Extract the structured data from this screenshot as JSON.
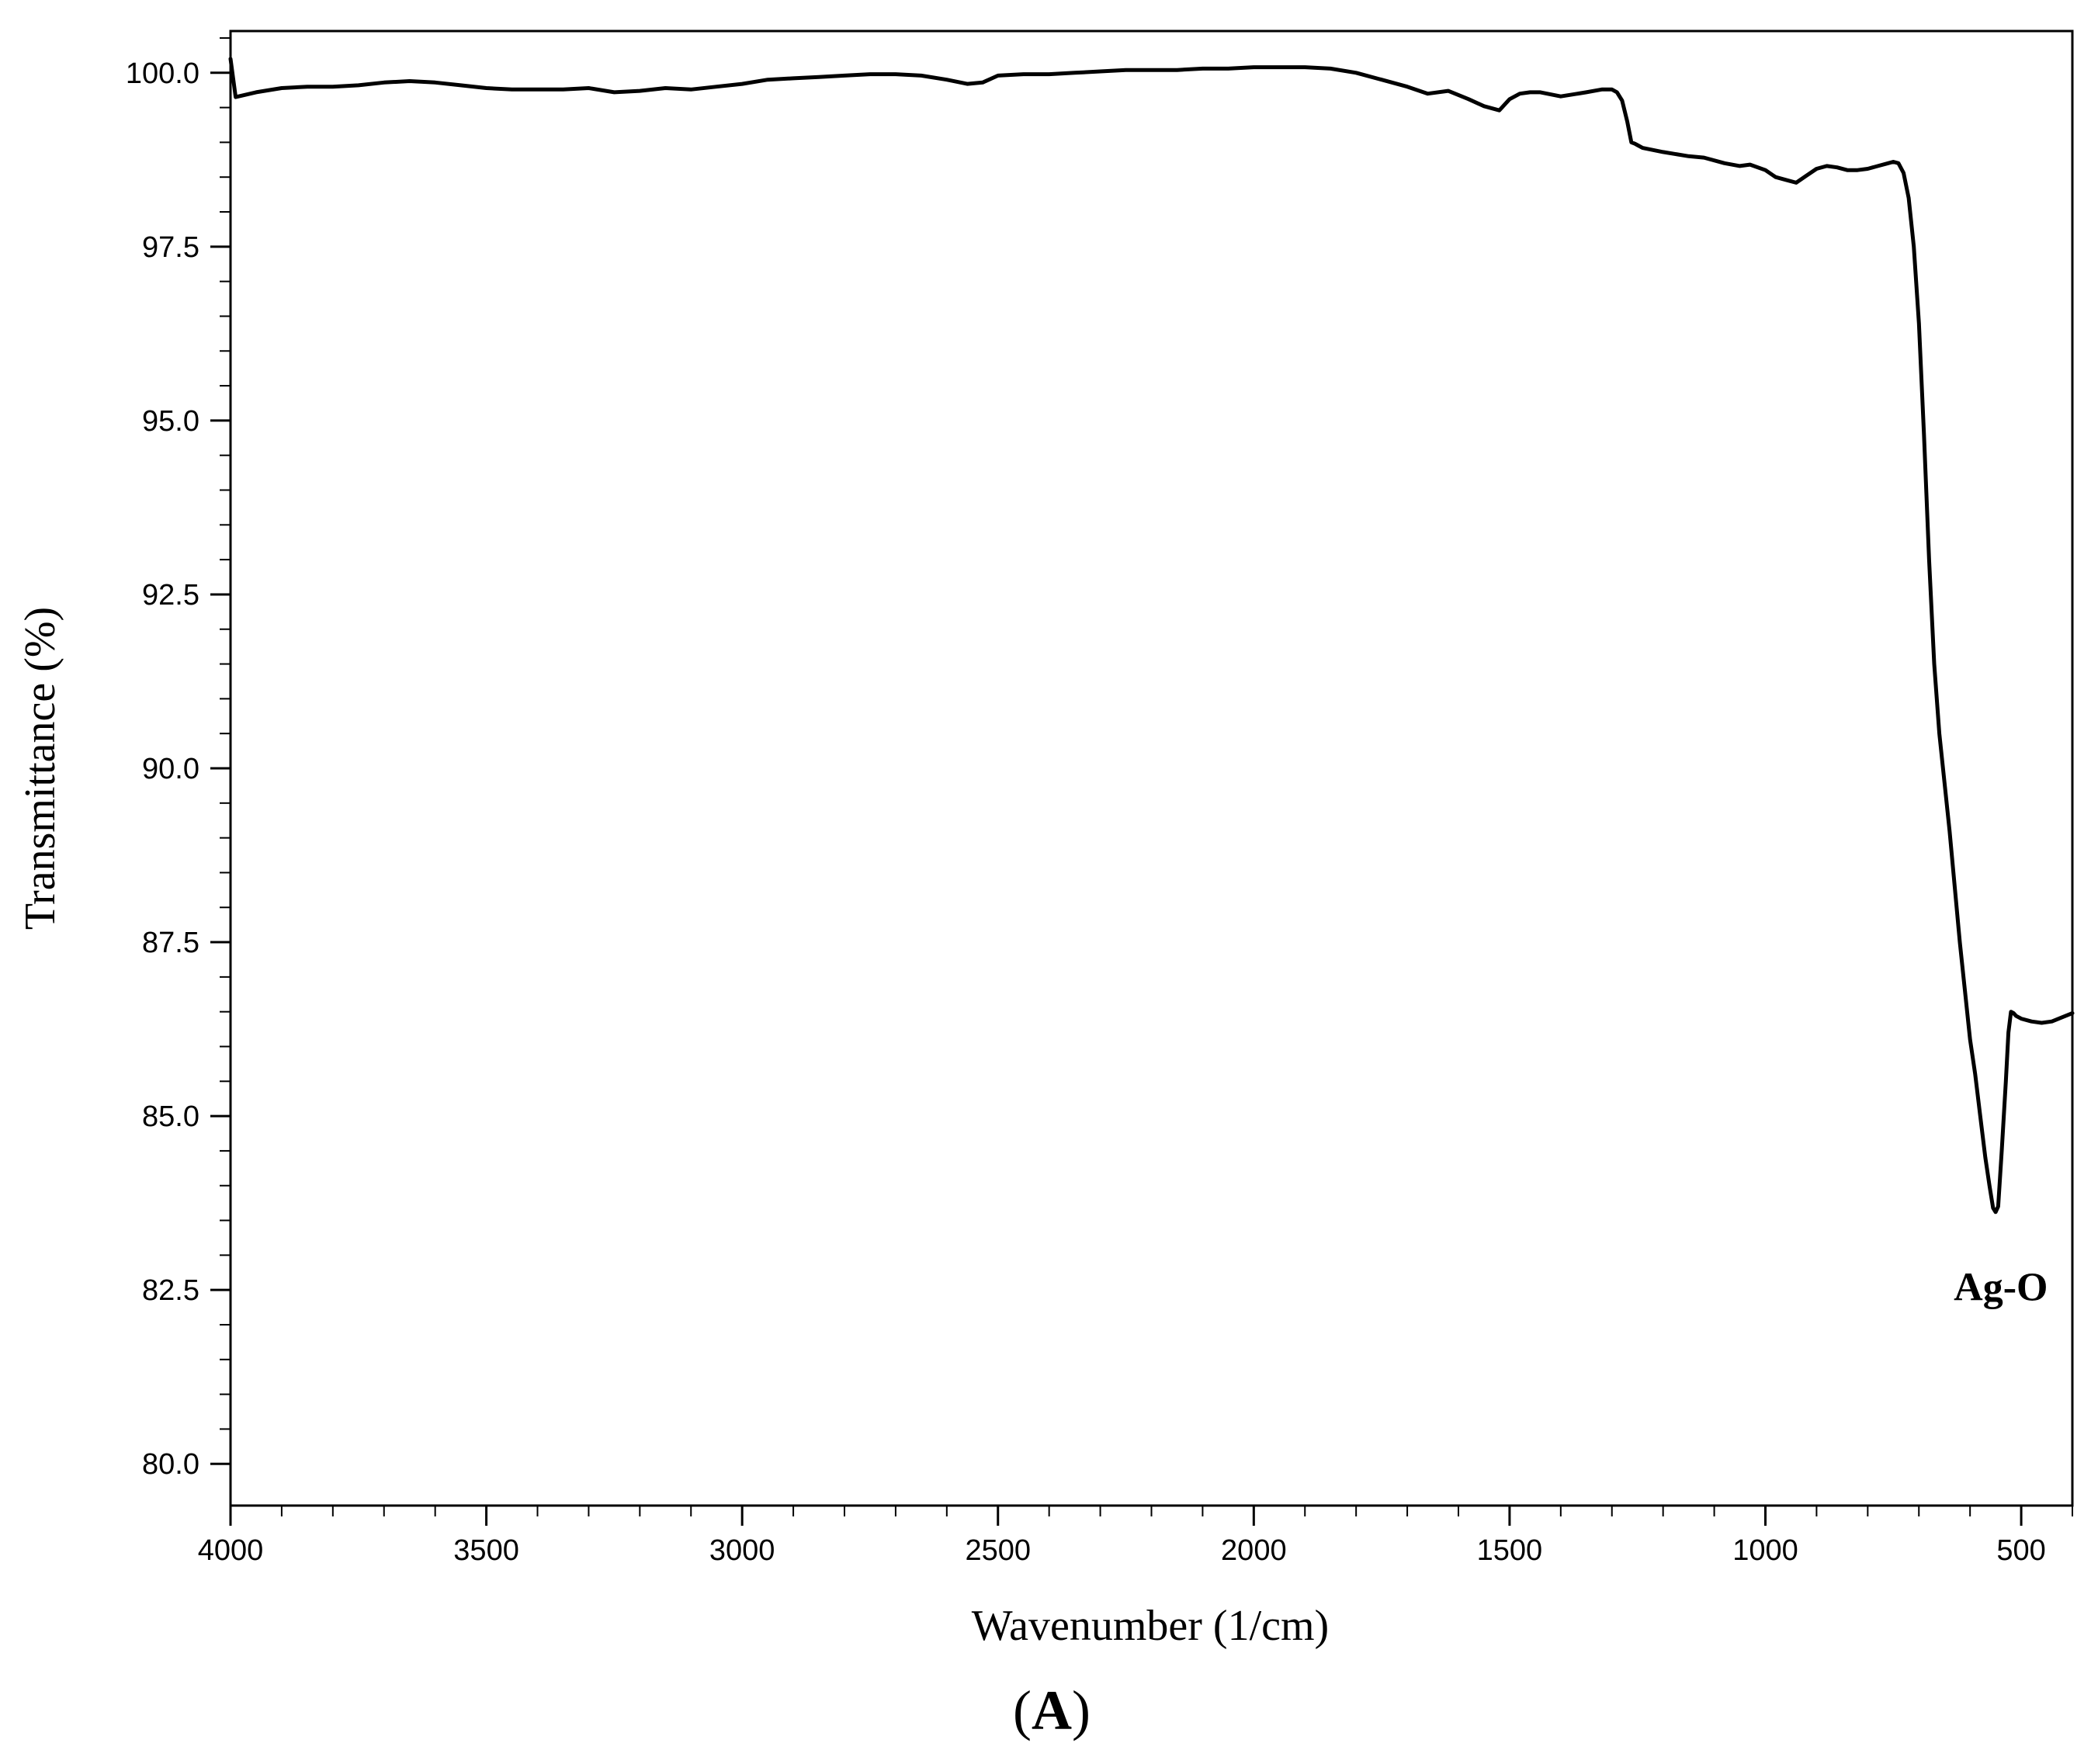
{
  "chart_data": {
    "type": "line",
    "title": "",
    "xlabel": "Wavenumber (1/cm)",
    "ylabel": "Transmittance (%)",
    "xlim": [
      4000,
      400
    ],
    "x_reversed": true,
    "ylim": [
      79.4,
      100.6
    ],
    "grid": false,
    "legend": "none",
    "x_ticks": [
      4000,
      3500,
      3000,
      2500,
      2000,
      1500,
      1000,
      500
    ],
    "x_tick_labels": [
      "4000",
      "3500",
      "3000",
      "2500",
      "2000",
      "1500",
      "1000",
      "500"
    ],
    "y_ticks": [
      80.0,
      82.5,
      85.0,
      87.5,
      90.0,
      92.5,
      95.0,
      97.5,
      100.0
    ],
    "y_tick_labels": [
      "80.0",
      "82.5",
      "85.0",
      "87.5",
      "90.0",
      "92.5",
      "95.0",
      "97.5",
      "100.0"
    ],
    "series": [
      {
        "color": "#000000",
        "x": [
          4000,
          3990,
          3950,
          3900,
          3850,
          3800,
          3750,
          3700,
          3650,
          3600,
          3550,
          3500,
          3450,
          3400,
          3350,
          3300,
          3250,
          3200,
          3150,
          3100,
          3050,
          3000,
          2950,
          2900,
          2850,
          2800,
          2750,
          2700,
          2650,
          2600,
          2560,
          2530,
          2500,
          2450,
          2400,
          2350,
          2300,
          2250,
          2200,
          2150,
          2100,
          2050,
          2000,
          1950,
          1900,
          1850,
          1800,
          1750,
          1700,
          1660,
          1620,
          1580,
          1550,
          1520,
          1500,
          1480,
          1460,
          1440,
          1400,
          1350,
          1320,
          1300,
          1290,
          1280,
          1270,
          1262,
          1255,
          1250,
          1240,
          1200,
          1150,
          1120,
          1080,
          1050,
          1030,
          1000,
          980,
          960,
          940,
          920,
          900,
          880,
          860,
          840,
          820,
          800,
          780,
          760,
          750,
          740,
          730,
          720,
          710,
          700,
          690,
          680,
          670,
          660,
          650,
          640,
          630,
          620,
          610,
          600,
          590,
          580,
          570,
          562,
          555,
          550,
          545,
          538,
          530,
          525,
          520,
          515,
          510,
          500,
          480,
          460,
          440,
          420,
          400
        ],
        "y": [
          100.2,
          99.65,
          99.72,
          99.78,
          99.8,
          99.8,
          99.82,
          99.86,
          99.88,
          99.86,
          99.82,
          99.78,
          99.76,
          99.76,
          99.76,
          99.78,
          99.72,
          99.74,
          99.78,
          99.76,
          99.8,
          99.84,
          99.9,
          99.92,
          99.94,
          99.96,
          99.98,
          99.98,
          99.96,
          99.9,
          99.84,
          99.86,
          99.96,
          99.98,
          99.98,
          100.0,
          100.02,
          100.04,
          100.04,
          100.04,
          100.06,
          100.06,
          100.08,
          100.08,
          100.08,
          100.06,
          100.0,
          99.9,
          99.8,
          99.7,
          99.74,
          99.62,
          99.52,
          99.46,
          99.62,
          99.7,
          99.72,
          99.72,
          99.66,
          99.72,
          99.76,
          99.76,
          99.72,
          99.6,
          99.3,
          99.0,
          98.98,
          98.96,
          98.92,
          98.86,
          98.8,
          98.78,
          98.7,
          98.66,
          98.68,
          98.6,
          98.5,
          98.46,
          98.42,
          98.52,
          98.62,
          98.66,
          98.64,
          98.6,
          98.6,
          98.62,
          98.66,
          98.7,
          98.72,
          98.7,
          98.56,
          98.2,
          97.5,
          96.4,
          94.8,
          93.0,
          91.5,
          90.5,
          89.8,
          89.1,
          88.3,
          87.5,
          86.8,
          86.1,
          85.6,
          85.0,
          84.4,
          84.0,
          83.68,
          83.62,
          83.7,
          84.5,
          85.5,
          86.2,
          86.5,
          86.48,
          86.44,
          86.4,
          86.36,
          86.34,
          86.36,
          86.42,
          86.48
        ]
      }
    ],
    "annotations": [
      {
        "text": "Ag-O",
        "x": 555,
        "y": 83.6
      }
    ]
  },
  "panel_label": {
    "open": "(",
    "letter": "A",
    "close": ")"
  },
  "colors": {
    "line": "#000000",
    "axis": "#000000",
    "background": "#ffffff"
  }
}
